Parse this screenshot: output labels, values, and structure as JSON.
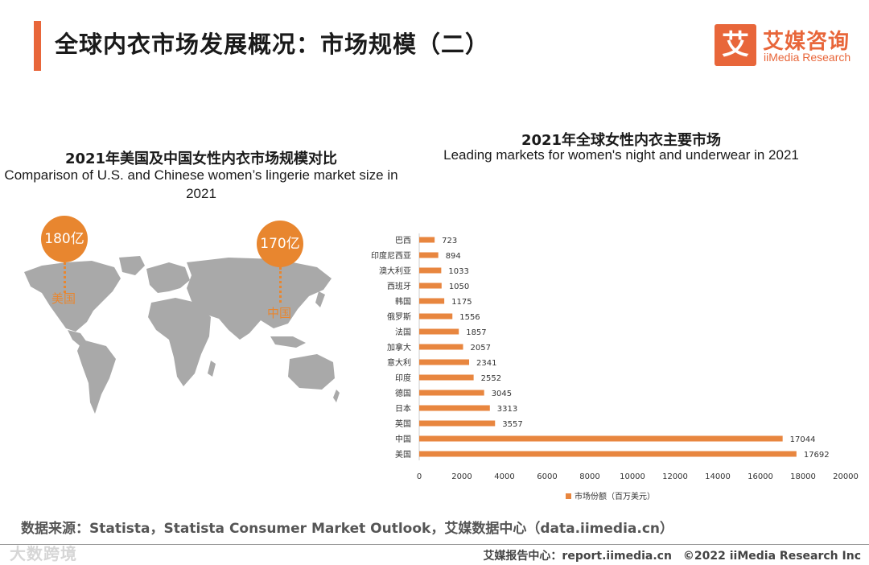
{
  "page": {
    "title": "全球内衣市场发展概况：市场规模（二）"
  },
  "logo": {
    "mark": "艾",
    "cn": "艾媒咨询",
    "en": "iiMedia Research"
  },
  "left_panel": {
    "title_cn": "2021年美国及中国女性内衣市场规模对比",
    "title_en": "Comparison of U.S. and Chinese women’s lingerie market size in 2021",
    "us": {
      "value": "180亿",
      "label": "美国"
    },
    "cn": {
      "value": "170亿",
      "label": "中国"
    }
  },
  "right_panel": {
    "title_cn": "2021年全球女性内衣主要市场",
    "title_en": "Leading markets for women's night and underwear in 2021"
  },
  "chart_data": {
    "type": "bar",
    "orientation": "horizontal",
    "title": "2021年全球女性内衣主要市场",
    "categories": [
      "巴西",
      "印度尼西亚",
      "澳大利亚",
      "西班牙",
      "韩国",
      "俄罗斯",
      "法国",
      "加拿大",
      "意大利",
      "印度",
      "德国",
      "日本",
      "英国",
      "中国",
      "美国"
    ],
    "series": [
      {
        "name": "市场份额（百万美元）",
        "values": [
          723,
          894,
          1033,
          1050,
          1175,
          1556,
          1857,
          2057,
          2341,
          2552,
          3045,
          3313,
          3557,
          17044,
          17692
        ]
      }
    ],
    "xlim": [
      0,
      20000
    ],
    "xticks": [
      0,
      2000,
      4000,
      6000,
      8000,
      10000,
      12000,
      14000,
      16000,
      18000,
      20000
    ],
    "legend": "bottom",
    "color": "#e8863f"
  },
  "footer": {
    "source": "数据来源：Statista，Statista Consumer Market Outlook，艾媒数据中心（data.iimedia.cn）",
    "credit": "艾媒报告中心：report.iimedia.cn　©2022  iiMedia Research  Inc",
    "watermark": "大数跨境"
  }
}
